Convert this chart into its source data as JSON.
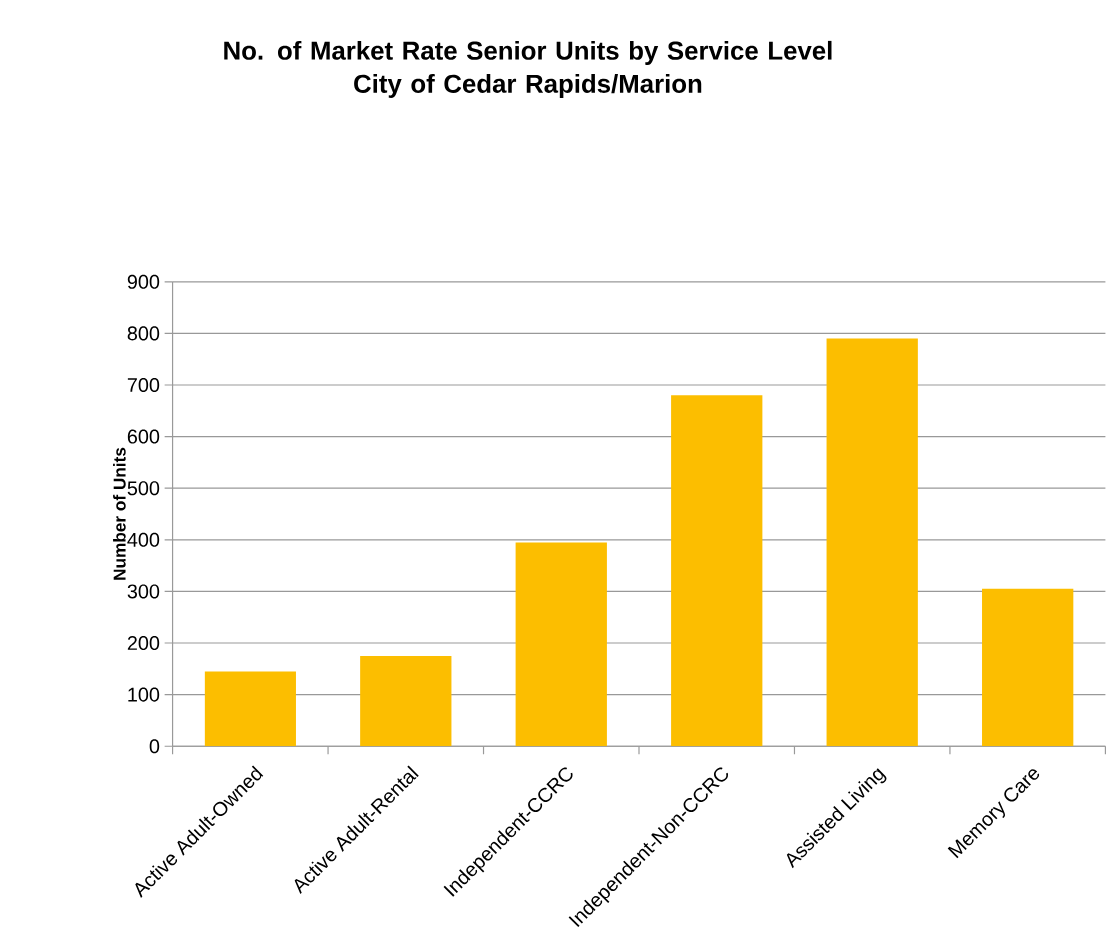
{
  "chart_data": {
    "type": "bar",
    "title": "No. of Market Rate Senior Units by Service Level\nCity of Cedar Rapids/Marion",
    "ylabel": "Number of Units",
    "categories": [
      "Active Adult-Owned",
      "Active Adult-Rental",
      "Independent-CCRC",
      "Independent-Non-CCRC",
      "Assisted Living",
      "Memory Care"
    ],
    "values": [
      145,
      175,
      395,
      680,
      790,
      305
    ],
    "color": "#fcbe00",
    "ylim": [
      0,
      900
    ],
    "yticks": [
      0,
      100,
      200,
      300,
      400,
      500,
      600,
      700,
      800,
      900
    ],
    "grid": "y"
  }
}
